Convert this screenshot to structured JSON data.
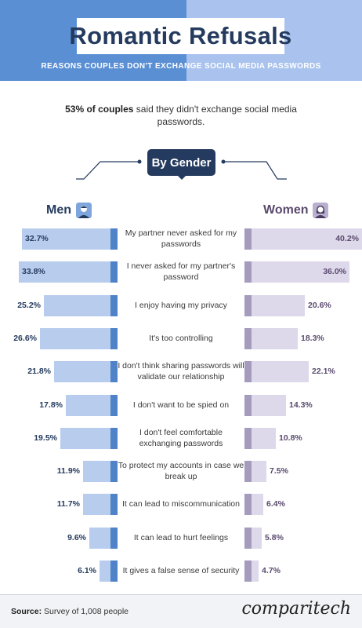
{
  "header": {
    "title": "Romantic Refusals",
    "subtitle": "REASONS COUPLES DON'T EXCHANGE SOCIAL MEDIA PASSWORDS"
  },
  "intro": {
    "bold": "53% of couples",
    "rest": " said they didn't exchange social media passwords."
  },
  "section_label": "By Gender",
  "legend": {
    "men": "Men",
    "women": "Women",
    "men_icon": "man-avatar-icon",
    "women_icon": "woman-avatar-icon"
  },
  "colors": {
    "men_bar": "#b8cdee",
    "men_cap": "#4f82c8",
    "women_bar": "#ddd8ea",
    "women_cap": "#a49bbd",
    "header_left": "#5a8fd4",
    "header_right": "#a9c3ee",
    "navy": "#243a5e"
  },
  "chart_data": {
    "type": "bar",
    "title": "Romantic Refusals",
    "subtitle": "REASONS COUPLES DON'T EXCHANGE SOCIAL MEDIA PASSWORDS",
    "categories": [
      "My partner never asked for my passwords",
      "I never asked for my partner's password",
      "I enjoy having my privacy",
      "It's too controlling",
      "I don't think sharing passwords will validate our relationship",
      "I don't want to be spied on",
      "I don't feel comfortable exchanging passwords",
      "To protect my accounts in case we break up",
      "It can lead to miscommunication",
      "It can lead to hurt feelings",
      "It gives a false sense of security"
    ],
    "series": [
      {
        "name": "Men",
        "values": [
          32.7,
          33.8,
          25.2,
          26.6,
          21.8,
          17.8,
          19.5,
          11.9,
          11.7,
          9.6,
          6.1
        ],
        "labels": [
          "32.7%",
          "33.8%",
          "25.2%",
          "26.6%",
          "21.8%",
          "17.8%",
          "19.5%",
          "11.9%",
          "11.7%",
          "9.6%",
          "6.1%"
        ]
      },
      {
        "name": "Women",
        "values": [
          40.2,
          36.0,
          20.6,
          18.3,
          22.1,
          14.3,
          10.8,
          7.5,
          6.4,
          5.8,
          4.7
        ],
        "labels": [
          "40.2%",
          "36.0%",
          "20.6%",
          "18.3%",
          "22.1%",
          "14.3%",
          "10.8%",
          "7.5%",
          "6.4%",
          "5.8%",
          "4.7%"
        ]
      }
    ],
    "orientation": "horizontal, butterfly (Men extends left, Women extends right)",
    "xlim": [
      0,
      40.2
    ],
    "grid": false
  },
  "footer": {
    "source_label": "Source:",
    "source_text": " Survey of 1,008 people",
    "brand": "comparitech"
  }
}
